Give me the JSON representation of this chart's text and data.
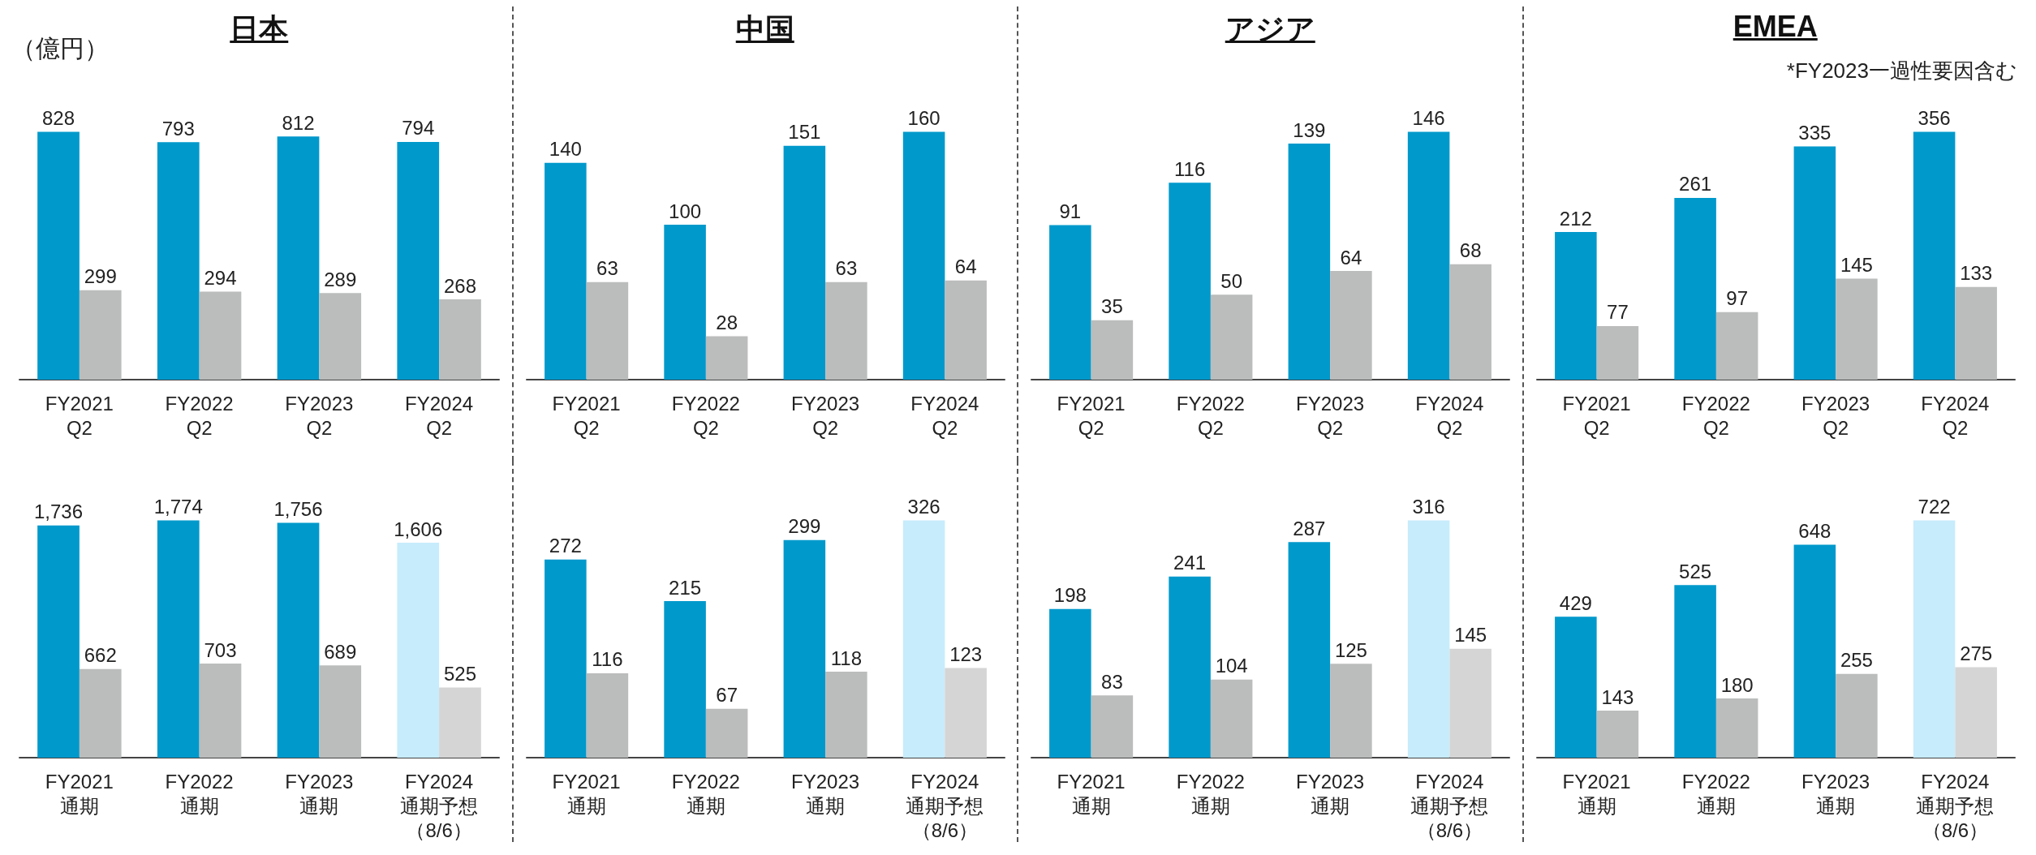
{
  "chart_data": [
    {
      "type": "bar",
      "title": "日本",
      "annotations": [
        "（億円）"
      ],
      "categories": [
        "FY2021\nQ2",
        "FY2022\nQ2",
        "FY2023\nQ2",
        "FY2024\nQ2"
      ],
      "data_labels": true,
      "series": [
        {
          "color": "#0099cc",
          "values": [
            828,
            793,
            812,
            794
          ]
        },
        {
          "color": "#bbbcbc",
          "values": [
            299,
            294,
            289,
            268
          ]
        }
      ]
    },
    {
      "type": "bar",
      "title": "中国",
      "categories": [
        "FY2021\nQ2",
        "FY2022\nQ2",
        "FY2023\nQ2",
        "FY2024\nQ2"
      ],
      "data_labels": true,
      "series": [
        {
          "color": "#0099cc",
          "values": [
            140,
            100,
            151,
            160
          ]
        },
        {
          "color": "#bbbcbc",
          "values": [
            63,
            28,
            63,
            64
          ]
        }
      ]
    },
    {
      "type": "bar",
      "title": "アジア",
      "categories": [
        "FY2021\nQ2",
        "FY2022\nQ2",
        "FY2023\nQ2",
        "FY2024\nQ2"
      ],
      "data_labels": true,
      "series": [
        {
          "color": "#0099cc",
          "values": [
            91,
            116,
            139,
            146
          ]
        },
        {
          "color": "#bbbcbc",
          "values": [
            35,
            50,
            64,
            68
          ]
        }
      ]
    },
    {
      "type": "bar",
      "title": "EMEA",
      "annotations": [
        "*FY2023一過性要因含む"
      ],
      "categories": [
        "FY2021\nQ2",
        "FY2022\nQ2",
        "FY2023\nQ2",
        "FY2024\nQ2"
      ],
      "data_labels": true,
      "series": [
        {
          "color": "#0099cc",
          "values": [
            212,
            261,
            335,
            356
          ]
        },
        {
          "color": "#bbbcbc",
          "values": [
            77,
            97,
            145,
            133
          ]
        }
      ]
    },
    {
      "type": "bar",
      "categories": [
        "FY2021\n通期",
        "FY2022\n通期",
        "FY2023\n通期",
        "FY2024\n通期予想（8/6）"
      ],
      "data_labels": true,
      "series": [
        {
          "colors": [
            "#0099cc",
            "#0099cc",
            "#0099cc",
            "#c7ecfc"
          ],
          "values": [
            1736,
            1774,
            1756,
            1606
          ],
          "value_labels": [
            "1,736",
            "1,774",
            "1,756",
            "1,606"
          ]
        },
        {
          "colors": [
            "#bbbcbc",
            "#bbbcbc",
            "#bbbcbc",
            "#d5d5d5"
          ],
          "values": [
            662,
            703,
            689,
            525
          ]
        }
      ]
    },
    {
      "type": "bar",
      "categories": [
        "FY2021\n通期",
        "FY2022\n通期",
        "FY2023\n通期",
        "FY2024\n通期予想（8/6）"
      ],
      "data_labels": true,
      "series": [
        {
          "colors": [
            "#0099cc",
            "#0099cc",
            "#0099cc",
            "#c7ecfc"
          ],
          "values": [
            272,
            215,
            299,
            326
          ]
        },
        {
          "colors": [
            "#bbbcbc",
            "#bbbcbc",
            "#bbbcbc",
            "#d5d5d5"
          ],
          "values": [
            116,
            67,
            118,
            123
          ]
        }
      ]
    },
    {
      "type": "bar",
      "categories": [
        "FY2021\n通期",
        "FY2022\n通期",
        "FY2023\n通期",
        "FY2024\n通期予想（8/6）"
      ],
      "data_labels": true,
      "series": [
        {
          "colors": [
            "#0099cc",
            "#0099cc",
            "#0099cc",
            "#c7ecfc"
          ],
          "values": [
            198,
            241,
            287,
            316
          ]
        },
        {
          "colors": [
            "#bbbcbc",
            "#bbbcbc",
            "#bbbcbc",
            "#d5d5d5"
          ],
          "values": [
            83,
            104,
            125,
            145
          ]
        }
      ]
    },
    {
      "type": "bar",
      "categories": [
        "FY2021\n通期",
        "FY2022\n通期",
        "FY2023\n通期",
        "FY2024\n通期予想（8/6）"
      ],
      "data_labels": true,
      "series": [
        {
          "colors": [
            "#0099cc",
            "#0099cc",
            "#0099cc",
            "#c7ecfc"
          ],
          "values": [
            429,
            525,
            648,
            722
          ]
        },
        {
          "colors": [
            "#bbbcbc",
            "#bbbcbc",
            "#bbbcbc",
            "#d5d5d5"
          ],
          "values": [
            143,
            180,
            255,
            275
          ]
        }
      ]
    }
  ]
}
